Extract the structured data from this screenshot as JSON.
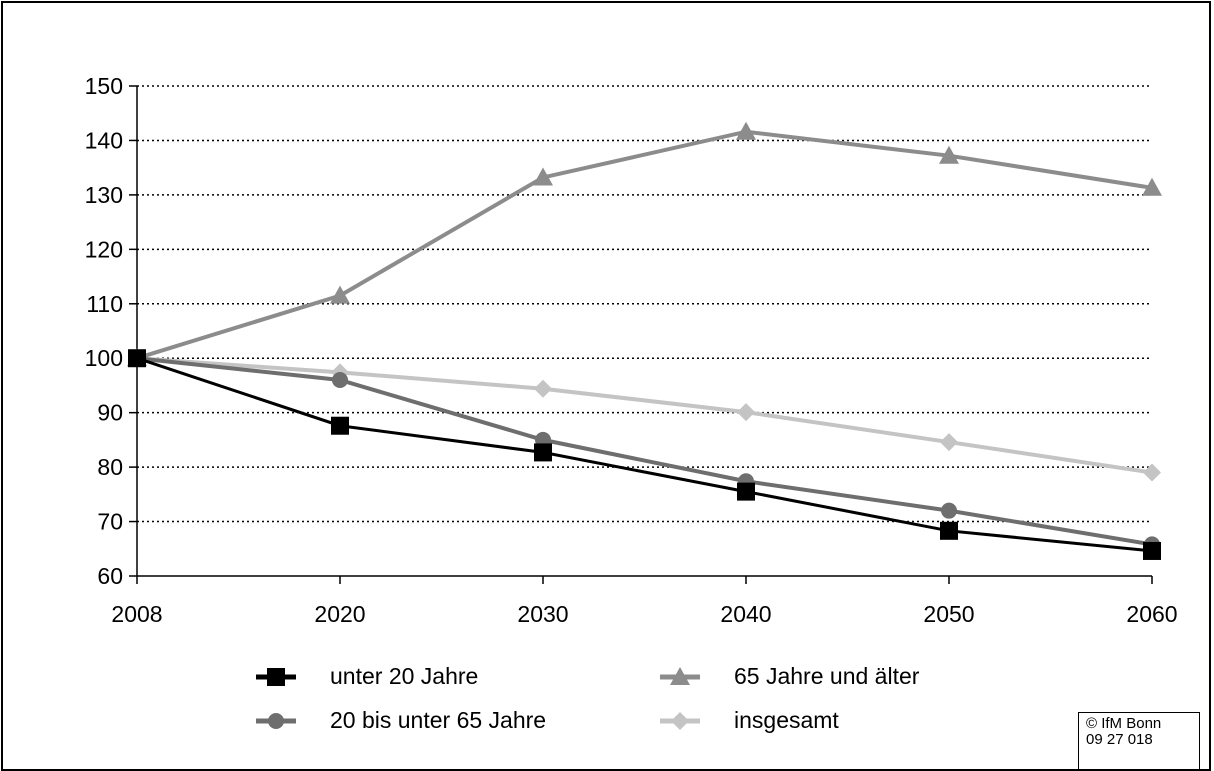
{
  "chart_data": {
    "type": "line",
    "title": "",
    "xlabel": "",
    "ylabel": "",
    "categories": [
      "2008",
      "2020",
      "2030",
      "2040",
      "2050",
      "2060"
    ],
    "ylim": [
      60,
      150
    ],
    "yticks": [
      60,
      70,
      80,
      90,
      100,
      110,
      120,
      130,
      140,
      150
    ],
    "grid": true,
    "legend_position": "bottom",
    "series": [
      {
        "name": "unter 20 Jahre",
        "marker": "square",
        "color": "#000000",
        "values": [
          100,
          87.6,
          82.7,
          75.5,
          68.3,
          64.6
        ]
      },
      {
        "name": "65 Jahre und älter",
        "marker": "triangle",
        "color": "#8c8c8c",
        "values": [
          100,
          111.5,
          133.2,
          141.6,
          137.2,
          131.3
        ]
      },
      {
        "name": "20 bis unter 65 Jahre",
        "marker": "circle",
        "color": "#6e6e6e",
        "values": [
          100,
          96.0,
          85.0,
          77.4,
          72.0,
          65.8
        ]
      },
      {
        "name": "insgesamt",
        "marker": "diamond",
        "color": "#c4c4c4",
        "values": [
          100,
          97.4,
          94.4,
          90.1,
          84.6,
          79.0
        ]
      }
    ]
  },
  "credit": {
    "line1": "© IfM Bonn",
    "line2": "09 27 018"
  }
}
